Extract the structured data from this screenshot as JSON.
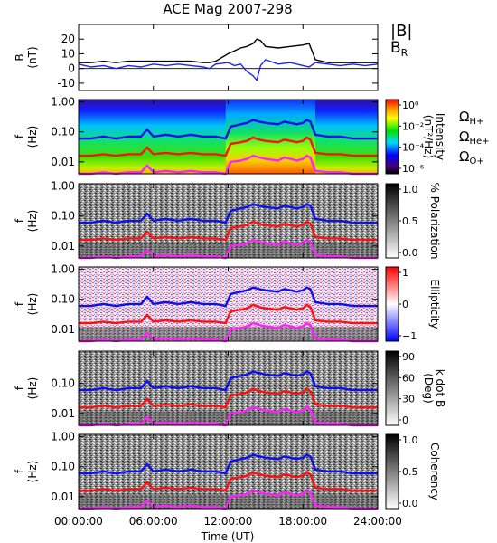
{
  "title": "ACE Mag 2007-298",
  "x_axis": {
    "label": "Time (UT)",
    "ticks": [
      "00:00:00",
      "06:00:00",
      "12:00:00",
      "18:00:00",
      "24:00:00"
    ],
    "tick_hours": [
      0,
      6,
      12,
      18,
      24
    ],
    "range_hours": [
      0,
      24
    ]
  },
  "legend": {
    "b_total": "|B|",
    "b_r": "B",
    "b_r_sub": "R",
    "omega": "Ω",
    "h_sub": "H+",
    "he_sub": "He+",
    "o_sub": "O+"
  },
  "colors": {
    "b_total": "#000000",
    "b_r": "#2020ff",
    "h_plus": "#1010ee",
    "he_plus": "#ff1010",
    "o_plus": "#ff20ff"
  },
  "chart_data": [
    {
      "type": "line",
      "panel": "magnetic-field",
      "ylabel": "B",
      "yunit": "(nT)",
      "ylim": [
        -15,
        30
      ],
      "yticks": [
        "-10",
        "0",
        "10",
        "20"
      ],
      "ytick_values": [
        -10,
        0,
        10,
        20
      ],
      "x": [
        0,
        1,
        2,
        3,
        4,
        5,
        6,
        7,
        8,
        9,
        10,
        10.5,
        11,
        12,
        12.5,
        13,
        13.5,
        14,
        14.3,
        14.6,
        15,
        16,
        17,
        18,
        18.5,
        19,
        20,
        21,
        22,
        23,
        24
      ],
      "series": [
        {
          "name": "|B|",
          "values": [
            4,
            4,
            5,
            4,
            5,
            5,
            5,
            5,
            5,
            5,
            4,
            4,
            5,
            10,
            12,
            14,
            15,
            17,
            20,
            19,
            15,
            14,
            15,
            16,
            17,
            6,
            4,
            4,
            4,
            4,
            4
          ]
        },
        {
          "name": "BR",
          "values": [
            3,
            1,
            2,
            0,
            2,
            1,
            3,
            2,
            3,
            2,
            1,
            0,
            3,
            4,
            2,
            3,
            -2,
            -5,
            -8,
            2,
            6,
            3,
            4,
            2,
            1,
            4,
            3,
            2,
            3,
            2,
            3
          ]
        }
      ]
    },
    {
      "type": "heatmap",
      "panel": "intensity",
      "ylabel": "f",
      "yunit": "(Hz)",
      "yscale": "log",
      "ylim": [
        0.004,
        1.2
      ],
      "yticks": [
        "1.00",
        "0.10",
        "0.01"
      ],
      "ytick_values": [
        1,
        0.1,
        0.01
      ],
      "colorbar": {
        "label": "Intensity",
        "unit": "(nT²/Hz)",
        "ticks": [
          "10⁰",
          "10⁻²",
          "10⁻⁴",
          "10⁻⁶"
        ],
        "scale": "rainbow"
      }
    },
    {
      "type": "heatmap",
      "panel": "polarization",
      "ylabel": "f",
      "yunit": "(Hz)",
      "yscale": "log",
      "ylim": [
        0.004,
        1.2
      ],
      "yticks": [
        "1.00",
        "0.10",
        "0.01"
      ],
      "ytick_values": [
        1,
        0.1,
        0.01
      ],
      "colorbar": {
        "label": "% Polarization",
        "ticks": [
          "1.0",
          "0.5",
          "0.0"
        ],
        "scale": "gray"
      }
    },
    {
      "type": "heatmap",
      "panel": "ellipticity",
      "ylabel": "f",
      "yunit": "(Hz)",
      "yscale": "log",
      "ylim": [
        0.004,
        1.2
      ],
      "yticks": [
        "1.00",
        "0.10",
        "0.01"
      ],
      "ytick_values": [
        1,
        0.1,
        0.01
      ],
      "colorbar": {
        "label": "Ellipticity",
        "ticks": [
          "1",
          "0",
          "−1"
        ],
        "scale": "bwr"
      }
    },
    {
      "type": "heatmap",
      "panel": "k-dot-b",
      "ylabel": "f",
      "yunit": "(Hz)",
      "yscale": "log",
      "ylim": [
        0.004,
        1.2
      ],
      "yticks": [
        "0.10",
        "0.01"
      ],
      "ytick_values": [
        0.1,
        0.01
      ],
      "colorbar": {
        "label": "k dot B",
        "unit": "(Deg)",
        "ticks": [
          "90",
          "60",
          "30",
          "0"
        ],
        "scale": "gray"
      }
    },
    {
      "type": "heatmap",
      "panel": "coherency",
      "ylabel": "f",
      "yunit": "(Hz)",
      "yscale": "log",
      "ylim": [
        0.004,
        1.2
      ],
      "yticks": [
        "1.00",
        "0.10",
        "0.01"
      ],
      "ytick_values": [
        1,
        0.1,
        0.01
      ],
      "colorbar": {
        "label": "Coherency",
        "ticks": [
          "1.0",
          "0.5",
          "0.0"
        ],
        "scale": "gray"
      }
    }
  ],
  "gyrofrequency_lines": {
    "x": [
      0,
      1,
      2,
      3,
      4,
      5,
      5.5,
      6,
      7,
      8,
      9,
      10,
      11,
      11.8,
      12.2,
      13,
      13.5,
      14,
      14.5,
      15,
      16,
      16.5,
      17,
      17.5,
      18,
      18.3,
      18.6,
      19,
      20,
      21,
      22,
      23,
      24
    ],
    "h_plus": [
      0.06,
      0.06,
      0.07,
      0.06,
      0.07,
      0.07,
      0.12,
      0.07,
      0.08,
      0.07,
      0.08,
      0.07,
      0.07,
      0.06,
      0.15,
      0.18,
      0.2,
      0.25,
      0.22,
      0.2,
      0.18,
      0.22,
      0.2,
      0.18,
      0.2,
      0.25,
      0.22,
      0.08,
      0.07,
      0.07,
      0.06,
      0.06,
      0.06
    ],
    "he_plus": [
      0.016,
      0.016,
      0.018,
      0.016,
      0.018,
      0.018,
      0.03,
      0.018,
      0.02,
      0.018,
      0.02,
      0.018,
      0.018,
      0.016,
      0.04,
      0.045,
      0.05,
      0.065,
      0.055,
      0.05,
      0.045,
      0.055,
      0.05,
      0.045,
      0.05,
      0.065,
      0.055,
      0.02,
      0.018,
      0.018,
      0.016,
      0.016,
      0.016
    ],
    "o_plus": [
      0.004,
      0.004,
      0.0045,
      0.004,
      0.0045,
      0.0045,
      0.0075,
      0.0045,
      0.005,
      0.0045,
      0.005,
      0.0045,
      0.0045,
      0.004,
      0.01,
      0.011,
      0.0125,
      0.016,
      0.014,
      0.0125,
      0.011,
      0.014,
      0.0125,
      0.011,
      0.0125,
      0.016,
      0.014,
      0.005,
      0.0045,
      0.0045,
      0.004,
      0.004,
      0.004
    ]
  }
}
